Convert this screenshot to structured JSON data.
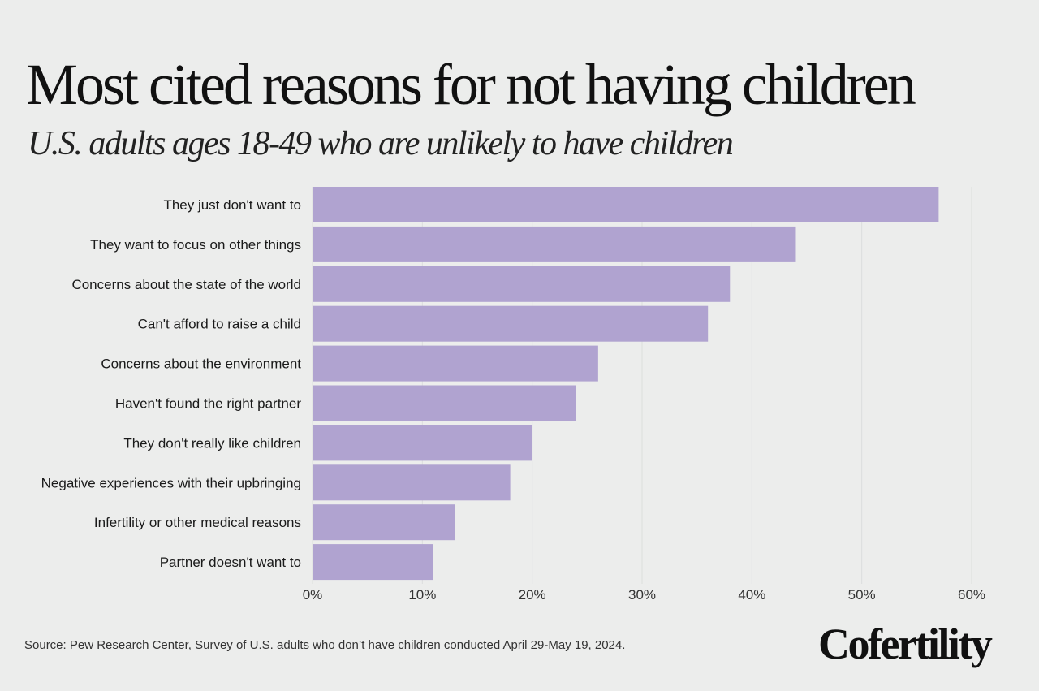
{
  "title": "Most cited reasons for not having children",
  "subtitle": "U.S. adults ages 18-49 who are unlikely to have children",
  "source": "Source: Pew Research Center, Survey of U.S. adults who don’t have children conducted April 29-May 19, 2024.",
  "logo": "Cofertility",
  "chart_data": {
    "type": "bar",
    "orientation": "horizontal",
    "categories": [
      "They just don't want to",
      "They want to focus on other things",
      "Concerns about the state of the world",
      "Can't afford to raise a child",
      "Concerns about the environment",
      "Haven't found the right partner",
      "They don't really like children",
      "Negative experiences with their upbringing",
      "Infertility or other medical reasons",
      "Partner doesn't want to"
    ],
    "values": [
      57,
      44,
      38,
      36,
      26,
      24,
      20,
      18,
      13,
      11
    ],
    "xlim": [
      0,
      60
    ],
    "ticks": [
      0,
      10,
      20,
      30,
      40,
      50,
      60
    ],
    "tick_labels": [
      "0%",
      "10%",
      "20%",
      "30%",
      "40%",
      "50%",
      "60%"
    ],
    "grid": true,
    "bar_color": "#b0a3d0"
  }
}
